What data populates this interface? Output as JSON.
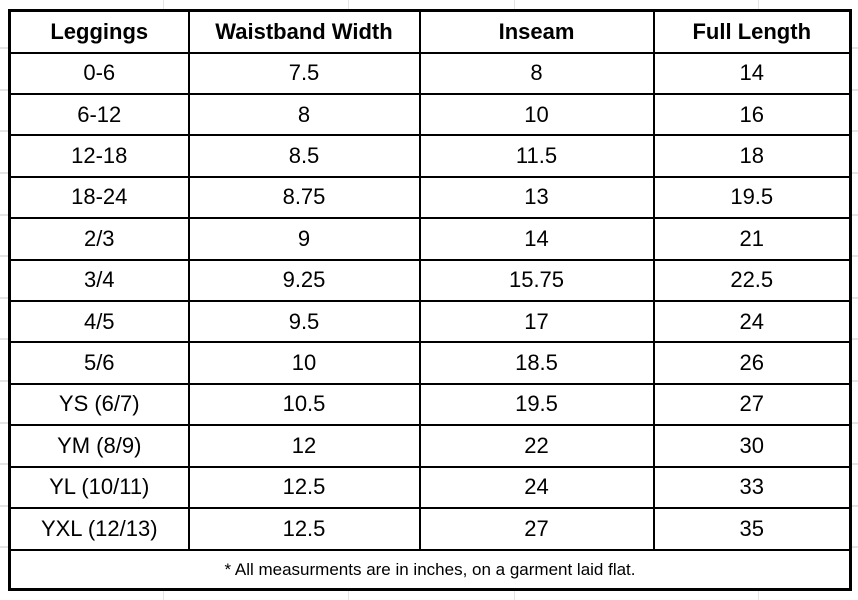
{
  "colors": {
    "table_border": "#000000",
    "text": "#000000",
    "background": "#ffffff",
    "gridline": "#e4e4e4"
  },
  "table": {
    "headers": [
      "Leggings",
      "Waistband Width",
      "Inseam",
      "Full Length"
    ],
    "rows": [
      [
        "0-6",
        "7.5",
        "8",
        "14"
      ],
      [
        "6-12",
        "8",
        "10",
        "16"
      ],
      [
        "12-18",
        "8.5",
        "11.5",
        "18"
      ],
      [
        "18-24",
        "8.75",
        "13",
        "19.5"
      ],
      [
        "2/3",
        "9",
        "14",
        "21"
      ],
      [
        "3/4",
        "9.25",
        "15.75",
        "22.5"
      ],
      [
        "4/5",
        "9.5",
        "17",
        "24"
      ],
      [
        "5/6",
        "10",
        "18.5",
        "26"
      ],
      [
        "YS (6/7)",
        "10.5",
        "19.5",
        "27"
      ],
      [
        "YM (8/9)",
        "12",
        "22",
        "30"
      ],
      [
        "YL (10/11)",
        "12.5",
        "24",
        "33"
      ],
      [
        "YXL (12/13)",
        "12.5",
        "27",
        "35"
      ]
    ],
    "footnote": "* All measurments are in inches, on a garment laid flat."
  }
}
